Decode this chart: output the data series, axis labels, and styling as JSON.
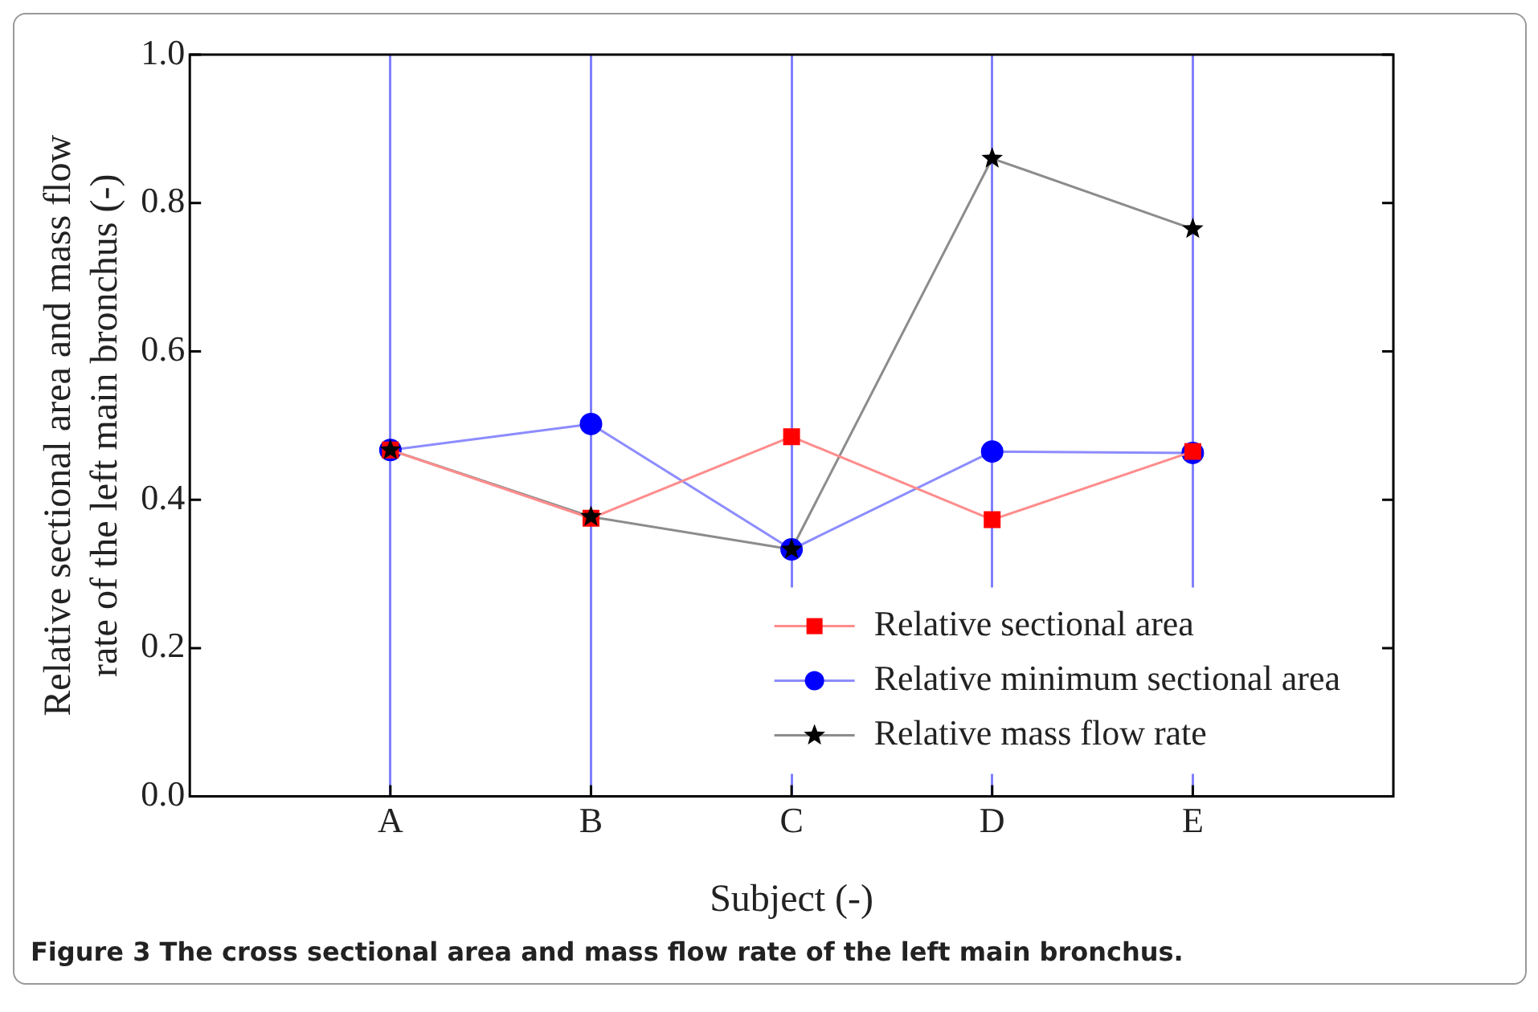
{
  "chart_data": {
    "type": "line",
    "xlabel": "Subject (-)",
    "ylabel": "Relative sectional area and mass flow rate of the left main bronchus (-)",
    "categories": [
      "A",
      "B",
      "C",
      "D",
      "E"
    ],
    "series": [
      {
        "name": "Relative sectional area",
        "color": "#ff0000",
        "marker": "square",
        "values": [
          0.467,
          0.375,
          0.485,
          0.373,
          0.465
        ]
      },
      {
        "name": "Relative minimum sectional area",
        "color": "#0000ff",
        "marker": "circle",
        "values": [
          0.467,
          0.502,
          0.333,
          0.465,
          0.463
        ]
      },
      {
        "name": "Relative mass flow rate",
        "color": "#000000",
        "marker": "star",
        "values": [
          0.467,
          0.377,
          0.333,
          0.86,
          0.765
        ]
      }
    ],
    "ylim": [
      0,
      1
    ],
    "yticks": [
      {
        "value": 0,
        "label": "0.0"
      },
      {
        "value": 0.2,
        "label": "0.2"
      },
      {
        "value": 0.4,
        "label": "0.4"
      },
      {
        "value": 0.6,
        "label": "0.6"
      },
      {
        "value": 0.8,
        "label": "0.8"
      },
      {
        "value": 1,
        "label": "1.0"
      }
    ],
    "grid": "x",
    "legend": "bottom right",
    "line_style": "solid",
    "annotations": [
      "Figure 3 The cross sectional area and mass flow rate of the left main bronchus."
    ]
  }
}
